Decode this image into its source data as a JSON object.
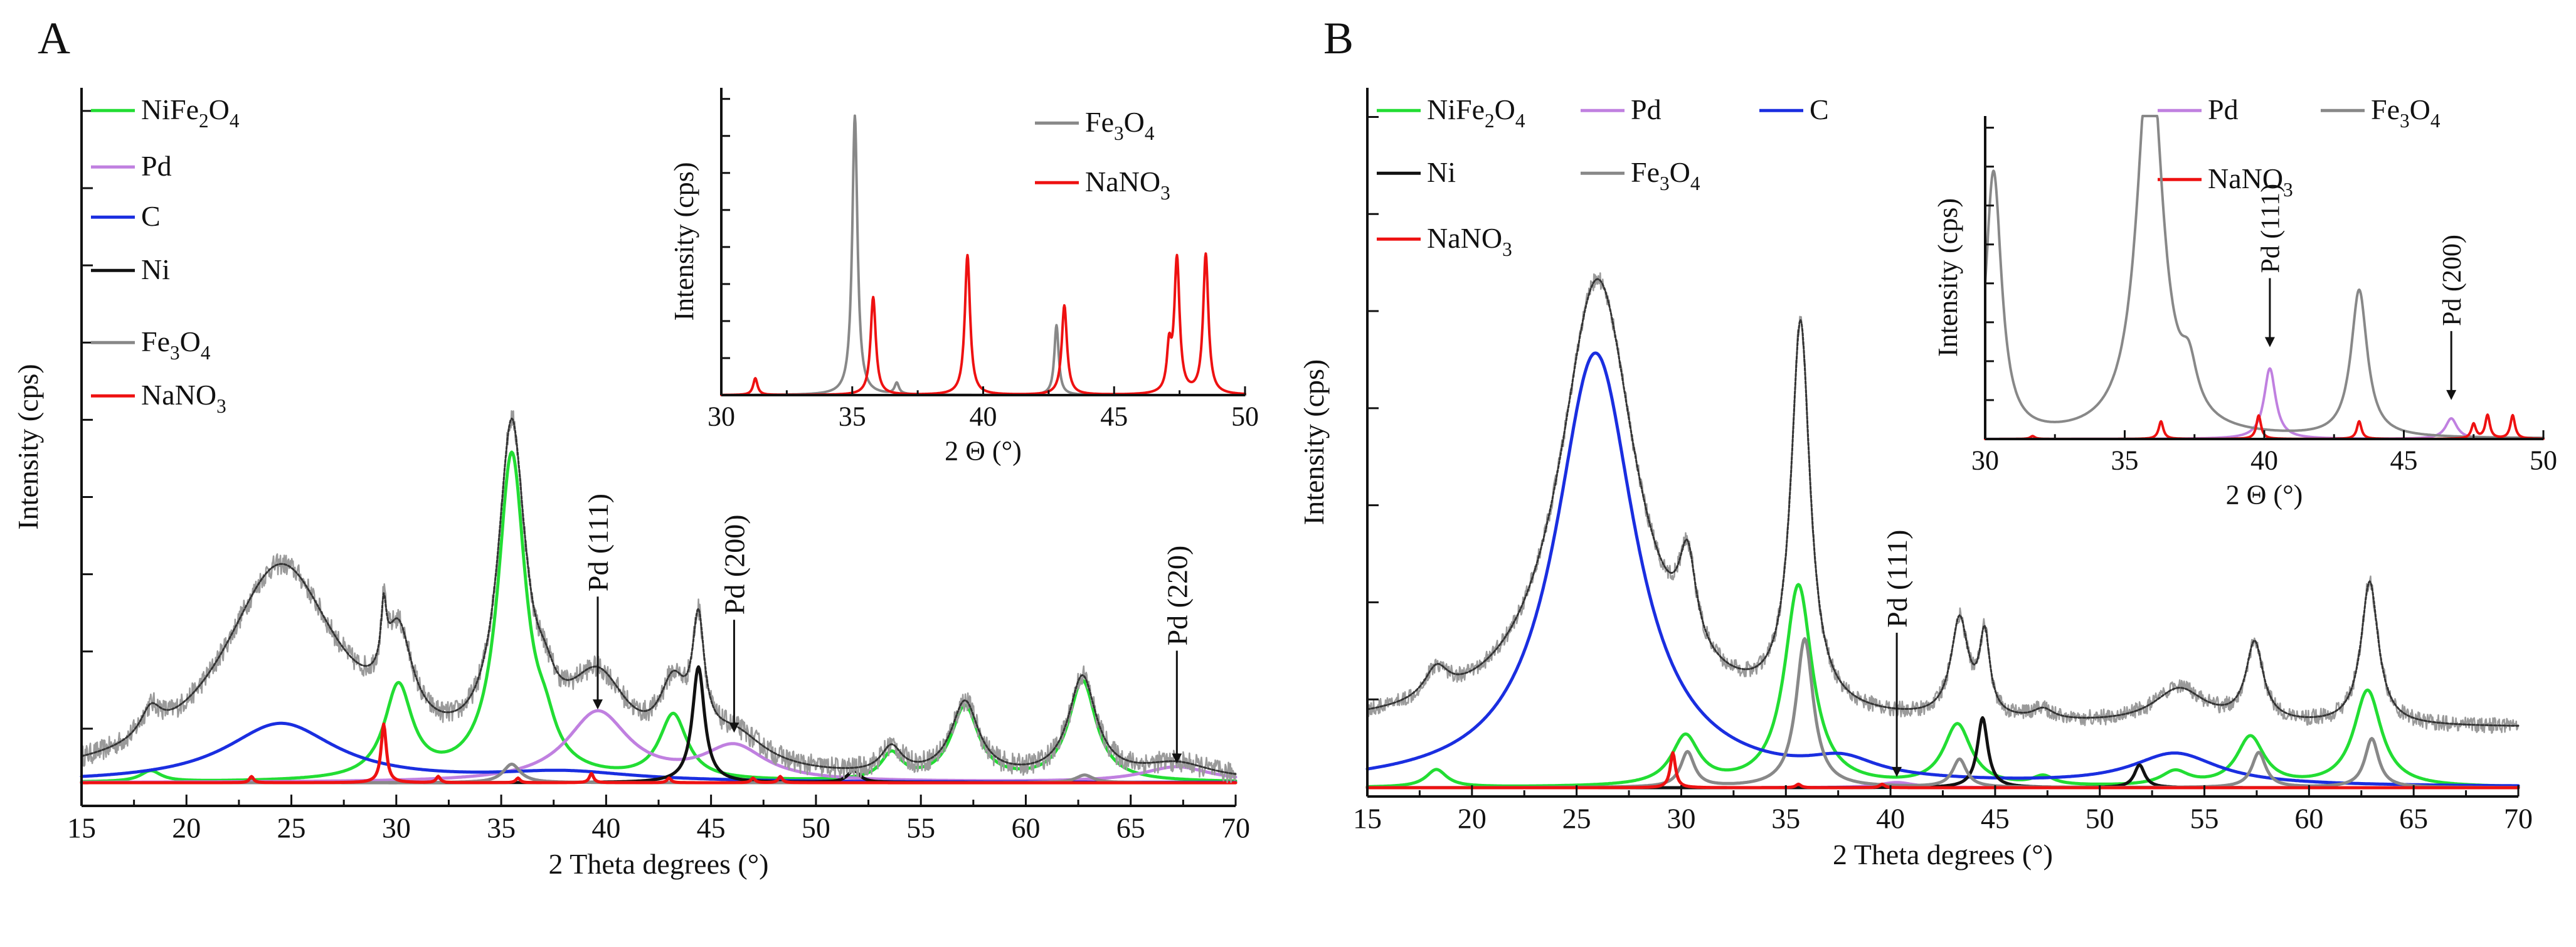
{
  "colors": {
    "NiFe2O4": "#22dd33",
    "Pd": "#c080e0",
    "C": "#1a2ee0",
    "Ni": "#111111",
    "Fe3O4": "#888888",
    "NaNO3": "#ee1111",
    "raw": "#9a9a9a",
    "fit": "#333333"
  },
  "chart_data": [
    {
      "panel": "A",
      "type": "line",
      "title": "",
      "xlabel": "2 Theta degrees (°)",
      "ylabel": "Intensity (cps)",
      "xlim": [
        15,
        70
      ],
      "ylim": [
        -0.15,
        4.5
      ],
      "xticks": [
        15,
        20,
        25,
        30,
        35,
        40,
        45,
        50,
        55,
        60,
        65,
        70
      ],
      "legend": [
        {
          "key": "NiFe2O4",
          "base": "NiFe",
          "sub": "2",
          "tail": "O",
          "sub2": "4"
        },
        {
          "key": "Pd",
          "base": "Pd",
          "sub": "",
          "tail": "",
          "sub2": ""
        },
        {
          "key": "C",
          "base": "C",
          "sub": "",
          "tail": "",
          "sub2": ""
        },
        {
          "key": "Ni",
          "base": "Ni",
          "sub": "",
          "tail": "",
          "sub2": ""
        },
        {
          "key": "Fe3O4",
          "base": "Fe",
          "sub": "3",
          "tail": "O",
          "sub2": "4"
        },
        {
          "key": "NaNO3",
          "base": "NaNO",
          "sub": "3",
          "tail": "",
          "sub2": ""
        }
      ],
      "annotations": [
        {
          "text": "Pd (111)",
          "x": 39.6,
          "y": 0.45
        },
        {
          "text": "Pd (200)",
          "x": 46.1,
          "y": 0.3
        },
        {
          "text": "Pd (220)",
          "x": 67.2,
          "y": 0.1
        }
      ],
      "series": [
        {
          "name": "NiFe2O4",
          "peaks": [
            [
              18.3,
              0.07,
              0.6
            ],
            [
              30.1,
              0.6,
              0.8
            ],
            [
              35.5,
              2.1,
              0.8
            ],
            [
              37.1,
              0.18,
              0.6
            ],
            [
              43.2,
              0.42,
              0.8
            ],
            [
              53.6,
              0.17,
              0.6
            ],
            [
              57.1,
              0.48,
              0.8
            ],
            [
              62.7,
              0.65,
              0.8
            ]
          ]
        },
        {
          "name": "Pd",
          "peaks": [
            [
              39.6,
              0.45,
              1.8
            ],
            [
              46.1,
              0.22,
              1.8
            ],
            [
              67.2,
              0.1,
              2.0
            ]
          ]
        },
        {
          "name": "C",
          "peaks": [
            [
              24.5,
              0.38,
              3.2
            ],
            [
              38.0,
              0.06,
              4.0
            ]
          ]
        },
        {
          "name": "Ni",
          "peaks": [
            [
              44.4,
              0.75,
              0.35
            ],
            [
              51.8,
              0.08,
              0.35
            ]
          ]
        },
        {
          "name": "Fe3O4",
          "peaks": [
            [
              35.5,
              0.12,
              0.5
            ],
            [
              62.8,
              0.05,
              0.5
            ]
          ]
        },
        {
          "name": "NaNO3",
          "peaks": [
            [
              23.1,
              0.04,
              0.12
            ],
            [
              29.4,
              0.38,
              0.15
            ],
            [
              32.0,
              0.04,
              0.12
            ],
            [
              35.8,
              0.03,
              0.12
            ],
            [
              39.3,
              0.06,
              0.12
            ],
            [
              43.0,
              0.03,
              0.12
            ],
            [
              47.0,
              0.03,
              0.12
            ],
            [
              48.3,
              0.04,
              0.12
            ]
          ]
        },
        {
          "name": "Fit",
          "peaks": [
            [
              18.3,
              0.18,
              0.6
            ],
            [
              24.5,
              1.38,
              3.4
            ],
            [
              29.4,
              0.38,
              0.15
            ],
            [
              30.1,
              0.6,
              0.8
            ],
            [
              35.5,
              2.1,
              0.8
            ],
            [
              37.1,
              0.18,
              0.6
            ],
            [
              39.6,
              0.55,
              1.8
            ],
            [
              43.2,
              0.42,
              0.8
            ],
            [
              44.4,
              0.75,
              0.35
            ],
            [
              46.1,
              0.22,
              1.8
            ],
            [
              53.6,
              0.17,
              0.6
            ],
            [
              57.1,
              0.48,
              0.8
            ],
            [
              62.7,
              0.65,
              0.8
            ],
            [
              67.2,
              0.1,
              2.0
            ]
          ]
        }
      ],
      "inset": {
        "xlabel": "2 Θ (°)",
        "ylabel": "Intensity (cps)",
        "xlim": [
          30,
          50
        ],
        "ylim": [
          0,
          1.1
        ],
        "xticks": [
          30,
          35,
          40,
          45,
          50
        ],
        "legend": [
          {
            "key": "Fe3O4",
            "base": "Fe",
            "sub": "3",
            "tail": "O",
            "sub2": "4"
          },
          {
            "key": "NaNO3",
            "base": "NaNO",
            "sub": "3",
            "tail": "",
            "sub2": ""
          }
        ],
        "annotations": [],
        "series": [
          {
            "name": "Fe3O4",
            "peaks": [
              [
                35.1,
                1.0,
                0.12
              ],
              [
                36.7,
                0.04,
                0.1
              ],
              [
                42.8,
                0.25,
                0.1
              ]
            ]
          },
          {
            "name": "NaNO3",
            "peaks": [
              [
                31.3,
                0.06,
                0.1
              ],
              [
                35.8,
                0.35,
                0.12
              ],
              [
                39.4,
                0.5,
                0.12
              ],
              [
                43.1,
                0.32,
                0.12
              ],
              [
                47.1,
                0.15,
                0.1
              ],
              [
                47.4,
                0.48,
                0.12
              ],
              [
                48.5,
                0.5,
                0.12
              ]
            ]
          }
        ]
      }
    },
    {
      "panel": "B",
      "type": "line",
      "title": "",
      "xlabel": "2 Theta degrees (°)",
      "ylabel": "Intensity (cps)",
      "xlim": [
        15,
        70
      ],
      "ylim": [
        -0.05,
        4.0
      ],
      "xticks": [
        15,
        20,
        25,
        30,
        35,
        40,
        45,
        50,
        55,
        60,
        65,
        70
      ],
      "legend": [
        {
          "key": "NiFe2O4",
          "base": "NiFe",
          "sub": "2",
          "tail": "O",
          "sub2": "4"
        },
        {
          "key": "Pd",
          "base": "Pd",
          "sub": "",
          "tail": "",
          "sub2": ""
        },
        {
          "key": "C",
          "base": "C",
          "sub": "",
          "tail": "",
          "sub2": ""
        },
        {
          "key": "Ni",
          "base": "Ni",
          "sub": "",
          "tail": "",
          "sub2": ""
        },
        {
          "key": "Fe3O4",
          "base": "Fe",
          "sub": "3",
          "tail": "O",
          "sub2": "4"
        },
        {
          "key": "NaNO3",
          "base": "NaNO",
          "sub": "3",
          "tail": "",
          "sub2": ""
        }
      ],
      "annotations": [
        {
          "text": "Pd (111)",
          "x": 40.3,
          "y": 0.04
        }
      ],
      "series": [
        {
          "name": "NiFe2O4",
          "peaks": [
            [
              18.3,
              0.1,
              0.6
            ],
            [
              30.2,
              0.28,
              0.8
            ],
            [
              35.6,
              1.15,
              0.8
            ],
            [
              43.2,
              0.35,
              0.8
            ],
            [
              47.3,
              0.05,
              0.6
            ],
            [
              53.6,
              0.08,
              0.8
            ],
            [
              57.2,
              0.28,
              0.8
            ],
            [
              62.8,
              0.55,
              0.8
            ]
          ]
        },
        {
          "name": "Pd",
          "peaks": [
            [
              40.3,
              0.03,
              1.0
            ]
          ]
        },
        {
          "name": "C",
          "peaks": [
            [
              25.9,
              2.48,
              2.3
            ],
            [
              37.7,
              0.1,
              2.0
            ],
            [
              53.6,
              0.18,
              2.5
            ]
          ]
        },
        {
          "name": "Ni",
          "peaks": [
            [
              44.4,
              0.4,
              0.3
            ],
            [
              51.9,
              0.13,
              0.3
            ]
          ]
        },
        {
          "name": "Fe3O4",
          "peaks": [
            [
              30.3,
              0.2,
              0.4
            ],
            [
              35.9,
              0.85,
              0.5
            ],
            [
              43.3,
              0.16,
              0.4
            ],
            [
              57.6,
              0.2,
              0.4
            ],
            [
              63.0,
              0.28,
              0.4
            ]
          ]
        },
        {
          "name": "NaNO3",
          "peaks": [
            [
              29.6,
              0.2,
              0.15
            ],
            [
              35.6,
              0.02,
              0.15
            ],
            [
              39.6,
              0.02,
              0.15
            ]
          ]
        },
        {
          "name": "Fit",
          "offset": 0.34,
          "peaks": [
            [
              18.3,
              0.17,
              0.7
            ],
            [
              26.0,
              2.55,
              2.2
            ],
            [
              30.3,
              0.52,
              0.5
            ],
            [
              35.7,
              2.2,
              0.55
            ],
            [
              43.3,
              0.56,
              0.5
            ],
            [
              44.5,
              0.45,
              0.3
            ],
            [
              47.3,
              0.06,
              0.6
            ],
            [
              53.8,
              0.2,
              1.5
            ],
            [
              57.4,
              0.45,
              0.5
            ],
            [
              62.9,
              0.82,
              0.5
            ]
          ]
        }
      ],
      "inset": {
        "xlabel": "2 Θ (°)",
        "ylabel": "Intensity (cps)",
        "xlim": [
          30,
          50
        ],
        "ylim": [
          0,
          1.1
        ],
        "xticks": [
          30,
          35,
          40,
          45,
          50
        ],
        "legend": [
          {
            "key": "Pd",
            "base": "Pd",
            "sub": "",
            "tail": "",
            "sub2": ""
          },
          {
            "key": "Fe3O4",
            "base": "Fe",
            "sub": "3",
            "tail": "O",
            "sub2": "4"
          },
          {
            "key": "NaNO3",
            "base": "NaNO",
            "sub": "3",
            "tail": "",
            "sub2": ""
          }
        ],
        "annotations": [
          {
            "text": "Pd (111)",
            "x": 40.2,
            "y": 0.3
          },
          {
            "text": "Pd (200)",
            "x": 46.7,
            "y": 0.12
          }
        ],
        "series": [
          {
            "name": "Pd",
            "peaks": [
              [
                40.2,
                0.24,
                0.25
              ],
              [
                46.7,
                0.07,
                0.25
              ]
            ]
          },
          {
            "name": "Fe3O4",
            "peaks": [
              [
                30.3,
                0.9,
                0.35
              ],
              [
                35.9,
                1.35,
                0.55
              ],
              [
                37.3,
                0.15,
                0.35
              ],
              [
                43.4,
                0.5,
                0.35
              ]
            ]
          },
          {
            "name": "NaNO3",
            "peaks": [
              [
                31.7,
                0.01,
                0.1
              ],
              [
                36.3,
                0.06,
                0.1
              ],
              [
                39.8,
                0.08,
                0.1
              ],
              [
                43.4,
                0.06,
                0.1
              ],
              [
                47.5,
                0.05,
                0.1
              ],
              [
                48.0,
                0.08,
                0.1
              ],
              [
                48.9,
                0.08,
                0.1
              ]
            ]
          }
        ]
      }
    }
  ],
  "panel_labels": [
    "A",
    "B"
  ]
}
